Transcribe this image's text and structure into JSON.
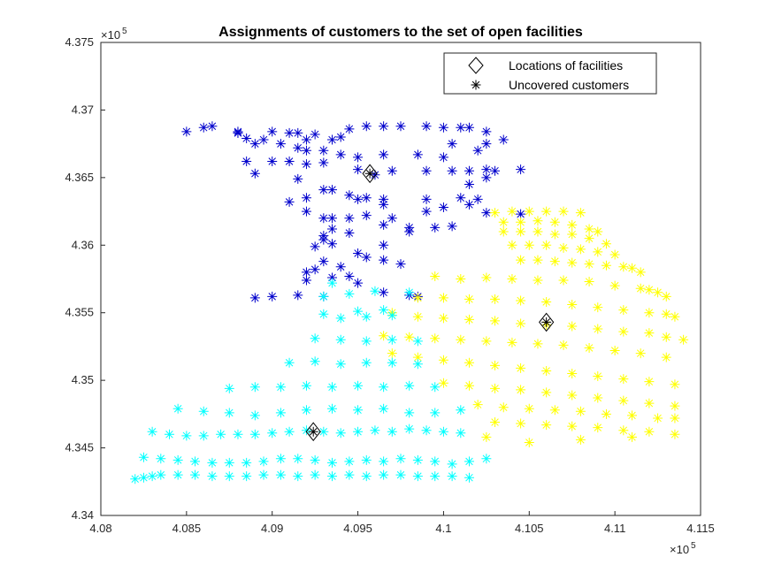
{
  "chart_data": {
    "type": "scatter",
    "title": "Assignments of customers to the set of open facilities",
    "xlabel": "",
    "ylabel": "",
    "xlim": [
      408000,
      411500
    ],
    "ylim": [
      434000,
      437500
    ],
    "x_ticks": [
      408000,
      408500,
      409000,
      409500,
      410000,
      410500,
      411000,
      411500
    ],
    "x_tick_labels": [
      "4.08",
      "4.085",
      "4.09",
      "4.095",
      "4.1",
      "4.105",
      "4.11",
      "4.115"
    ],
    "y_ticks": [
      434000,
      434500,
      435000,
      435500,
      436000,
      436500,
      437000,
      437500
    ],
    "y_tick_labels": [
      "4.34",
      "4.345",
      "4.35",
      "4.355",
      "4.36",
      "4.365",
      "4.37",
      "4.375"
    ],
    "x_exponent_label": "×10",
    "x_exponent_power": "5",
    "y_exponent_label": "×10",
    "y_exponent_power": "5",
    "grid": false,
    "legend_position": "top-right",
    "legend": [
      {
        "label": "Locations of facilities",
        "marker": "diamond"
      },
      {
        "label": "Uncovered customers",
        "marker": "asterisk"
      }
    ],
    "facilities": [
      {
        "x": 409570,
        "y": 436530
      },
      {
        "x": 410600,
        "y": 435430
      },
      {
        "x": 409240,
        "y": 434620
      }
    ],
    "series": [
      {
        "color": "#0000cc",
        "x": [
          408500,
          408600,
          408650,
          408800,
          408800,
          408800,
          408850,
          408950,
          409000,
          409100,
          409150,
          409200,
          409250,
          409350,
          409400,
          409450,
          409550,
          409650,
          409750,
          409900,
          410000,
          410100,
          410150,
          410250,
          408900,
          409050,
          409150,
          409200,
          409300,
          409400,
          409500,
          409650,
          409850,
          410000,
          410050,
          410200,
          410250,
          410350,
          408850,
          409000,
          409100,
          409200,
          409300,
          409500,
          409600,
          409700,
          409900,
          410050,
          410150,
          410250,
          410150,
          410250,
          410300,
          410450,
          408900,
          409150,
          409300,
          409500,
          409650,
          409900,
          410000,
          410150,
          409100,
          409200,
          409350,
          409450,
          409550,
          409650,
          409900,
          410100,
          410200,
          410250,
          410450,
          409200,
          409300,
          409350,
          409450,
          409550,
          409700,
          409300,
          409350,
          409450,
          409650,
          409800,
          409950,
          410050,
          409250,
          409300,
          409350,
          409500,
          409650,
          409800,
          409250,
          409300,
          409400,
          409550,
          409750,
          409200,
          409350,
          409450,
          409500,
          409650,
          409800,
          409650,
          408900,
          409000,
          409150,
          409300,
          409850,
          409200
        ],
        "y": [
          436840,
          436870,
          436880,
          436830,
          436840,
          436830,
          436790,
          436780,
          436840,
          436830,
          436830,
          436780,
          436820,
          436780,
          436800,
          436860,
          436880,
          436880,
          436880,
          436880,
          436870,
          436870,
          436870,
          436840,
          436750,
          436750,
          436720,
          436700,
          436700,
          436670,
          436650,
          436670,
          436670,
          436650,
          436750,
          436700,
          436750,
          436780,
          436620,
          436620,
          436620,
          436600,
          436610,
          436560,
          436520,
          436550,
          436550,
          436550,
          436550,
          436560,
          436450,
          436500,
          436550,
          436560,
          436530,
          436490,
          436410,
          436340,
          436300,
          436250,
          436280,
          436300,
          436320,
          436350,
          436410,
          436370,
          436350,
          436340,
          436340,
          436350,
          436340,
          436240,
          436230,
          436250,
          436200,
          436200,
          436200,
          436220,
          436200,
          436070,
          436120,
          436090,
          436150,
          436130,
          436130,
          436140,
          435990,
          436040,
          436010,
          435940,
          436000,
          436100,
          435820,
          435880,
          435840,
          435910,
          435860,
          435800,
          435760,
          435770,
          435720,
          435650,
          435630,
          435890,
          435610,
          435620,
          435630,
          435620,
          435620,
          435740
        ]
      },
      {
        "color": "#ffff00",
        "x": [
          410300,
          410400,
          410500,
          410600,
          410700,
          410800,
          410350,
          410450,
          410550,
          410650,
          410750,
          410850,
          410900,
          410350,
          410450,
          410550,
          410650,
          410750,
          410850,
          410950,
          410400,
          410500,
          410600,
          410700,
          410800,
          410900,
          411000,
          410450,
          410550,
          410650,
          410750,
          410850,
          410950,
          411050,
          411100,
          411150,
          409950,
          410100,
          410250,
          410400,
          410550,
          410700,
          410850,
          411000,
          411150,
          411200,
          411250,
          411300,
          409850,
          410000,
          410150,
          410300,
          410450,
          410600,
          410750,
          410900,
          411050,
          411200,
          411300,
          411350,
          409700,
          409850,
          410000,
          410150,
          410300,
          410450,
          410600,
          410750,
          410900,
          411050,
          411200,
          411300,
          411400,
          409650,
          409800,
          409950,
          410100,
          410250,
          410400,
          410550,
          410700,
          410850,
          411000,
          411150,
          411300,
          409700,
          409850,
          410000,
          410150,
          410300,
          410450,
          410600,
          410750,
          410900,
          411050,
          411200,
          411350,
          410000,
          410150,
          410300,
          410450,
          410600,
          410750,
          410900,
          411050,
          411200,
          411350,
          410200,
          410350,
          410500,
          410650,
          410800,
          410950,
          411100,
          411250,
          410300,
          410450,
          410600,
          410750,
          410900,
          411050,
          411200,
          411350,
          410250,
          410500,
          410800,
          411100,
          411350
        ],
        "y": [
          436240,
          436250,
          436250,
          436250,
          436250,
          436240,
          436170,
          436170,
          436180,
          436170,
          436150,
          436120,
          436100,
          436100,
          436100,
          436100,
          436080,
          436080,
          436050,
          436010,
          436000,
          436000,
          436000,
          435980,
          435970,
          435950,
          435930,
          435890,
          435890,
          435880,
          435870,
          435860,
          435850,
          435840,
          435830,
          435800,
          435770,
          435750,
          435760,
          435750,
          435740,
          435740,
          435730,
          435700,
          435680,
          435670,
          435650,
          435620,
          435610,
          435610,
          435600,
          435600,
          435590,
          435580,
          435560,
          435540,
          435520,
          435500,
          435490,
          435470,
          435500,
          435470,
          435460,
          435450,
          435440,
          435420,
          435410,
          435400,
          435380,
          435360,
          435350,
          435320,
          435300,
          435330,
          435320,
          435310,
          435300,
          435290,
          435280,
          435270,
          435260,
          435240,
          435220,
          435200,
          435170,
          435200,
          435170,
          435150,
          435130,
          435110,
          435090,
          435070,
          435050,
          435030,
          435010,
          434990,
          434970,
          434980,
          434960,
          434940,
          434930,
          434910,
          434890,
          434870,
          434850,
          434830,
          434810,
          434820,
          434800,
          434790,
          434780,
          434770,
          434750,
          434740,
          434720,
          434690,
          434680,
          434670,
          434660,
          434650,
          434630,
          434620,
          434600,
          434580,
          434540,
          434560,
          434580,
          434720
        ]
      },
      {
        "color": "#00ffff",
        "x": [
          408200,
          408250,
          408300,
          408350,
          408450,
          408550,
          408650,
          408750,
          408850,
          408950,
          409050,
          409150,
          409250,
          409350,
          409450,
          409550,
          409650,
          409750,
          409850,
          409950,
          410050,
          410150,
          408250,
          408350,
          408450,
          408550,
          408650,
          408750,
          408850,
          408950,
          409050,
          409150,
          409250,
          409350,
          409450,
          409550,
          409650,
          409750,
          409850,
          409950,
          410050,
          410150,
          410250,
          408300,
          408400,
          408500,
          408600,
          408700,
          408800,
          408900,
          409000,
          409100,
          409200,
          409300,
          409400,
          409500,
          409600,
          409700,
          409800,
          409900,
          410000,
          410100,
          408450,
          408600,
          408750,
          408900,
          409050,
          409200,
          409350,
          409500,
          409650,
          409800,
          409950,
          410100,
          408750,
          408900,
          409050,
          409200,
          409350,
          409500,
          409650,
          409800,
          409950,
          409100,
          409250,
          409400,
          409550,
          409700,
          409850,
          409250,
          409400,
          409550,
          409700,
          409850,
          409400,
          409550,
          409700,
          409300,
          409500,
          409650,
          409300,
          409450,
          409600,
          409800,
          409350
        ],
        "y": [
          434270,
          434280,
          434290,
          434300,
          434300,
          434300,
          434290,
          434290,
          434290,
          434300,
          434300,
          434290,
          434300,
          434290,
          434300,
          434290,
          434300,
          434300,
          434290,
          434290,
          434290,
          434280,
          434430,
          434420,
          434410,
          434400,
          434390,
          434390,
          434390,
          434400,
          434420,
          434420,
          434410,
          434390,
          434400,
          434410,
          434400,
          434420,
          434410,
          434400,
          434380,
          434400,
          434420,
          434620,
          434600,
          434590,
          434590,
          434600,
          434600,
          434600,
          434610,
          434620,
          434630,
          434620,
          434610,
          434620,
          434630,
          434620,
          434640,
          434630,
          434620,
          434610,
          434790,
          434770,
          434760,
          434740,
          434760,
          434780,
          434790,
          434780,
          434790,
          434760,
          434760,
          434780,
          434940,
          434950,
          434950,
          434960,
          434950,
          434960,
          434950,
          434960,
          434950,
          435130,
          435140,
          435120,
          435130,
          435130,
          435120,
          435310,
          435300,
          435290,
          435300,
          435290,
          435460,
          435470,
          435480,
          435490,
          435510,
          435520,
          435620,
          435640,
          435660,
          435650,
          435720
        ]
      }
    ]
  }
}
